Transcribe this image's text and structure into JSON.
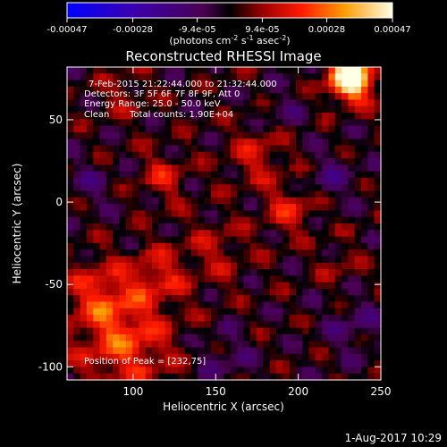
{
  "chart_data": {
    "type": "heatmap",
    "title": "Reconstructed RHESSI Image",
    "xlabel": "Heliocentric X (arcsec)",
    "ylabel": "Heliocentric Y (arcsec)",
    "xlim": [
      60,
      250
    ],
    "ylim": [
      -108,
      82
    ],
    "x_ticks": [
      100,
      150,
      200,
      250
    ],
    "y_ticks": [
      -100,
      -50,
      0,
      50
    ],
    "colorbar": {
      "ticks": [
        "-0.00047",
        "-0.00028",
        "-9.4e-05",
        "9.4e-05",
        "0.00028",
        "0.00047"
      ],
      "range": [
        -0.00047,
        0.00047
      ],
      "unit_label": "(photons cm",
      "unit_exp1": "-2",
      "unit_mid": " s",
      "unit_exp2": "-1",
      "unit_mid2": " asec",
      "unit_exp3": "-2",
      "unit_end": ")"
    },
    "annotations": {
      "time_range": "7-Feb-2015 21:22:44.000 to 21:32:44.000",
      "detectors": "Detectors: 3F 5F 6F 7F 8F 9F, Att 0",
      "energy": "Energy Range: 25.0 - 50.0 keV",
      "clean": "Clean",
      "counts": "Total counts: 1.90E+04",
      "peak": "Position of Peak = [232,75]"
    },
    "blobs": [
      {
        "x": 232,
        "y": 75,
        "sigma": 9,
        "v": 0.00058
      },
      {
        "x": 95,
        "y": -85,
        "sigma": 20,
        "v": 0.00022
      },
      {
        "x": 80,
        "y": -55,
        "sigma": 14,
        "v": 0.00016
      },
      {
        "x": 115,
        "y": -45,
        "sigma": 12,
        "v": 0.00015
      },
      {
        "x": 195,
        "y": -5,
        "sigma": 10,
        "v": 0.00016
      },
      {
        "x": 175,
        "y": 28,
        "sigma": 12,
        "v": 0.00014
      },
      {
        "x": 118,
        "y": 15,
        "sigma": 10,
        "v": 0.00014
      },
      {
        "x": 150,
        "y": -30,
        "sigma": 14,
        "v": 0.0001
      },
      {
        "x": 95,
        "y": 65,
        "sigma": 10,
        "v": 9e-05
      },
      {
        "x": 225,
        "y": -38,
        "sigma": 9,
        "v": 7e-05
      },
      {
        "x": 235,
        "y": -75,
        "sigma": 12,
        "v": -0.0001
      },
      {
        "x": 220,
        "y": 15,
        "sigma": 10,
        "v": -0.0001
      },
      {
        "x": 75,
        "y": 10,
        "sigma": 10,
        "v": -8e-05
      },
      {
        "x": 190,
        "y": 55,
        "sigma": 10,
        "v": -7e-05
      },
      {
        "x": 155,
        "y": -95,
        "sigma": 12,
        "v": -8e-05
      }
    ],
    "grid": false
  },
  "footer": {
    "date": "1-Aug-2017 10:29"
  }
}
